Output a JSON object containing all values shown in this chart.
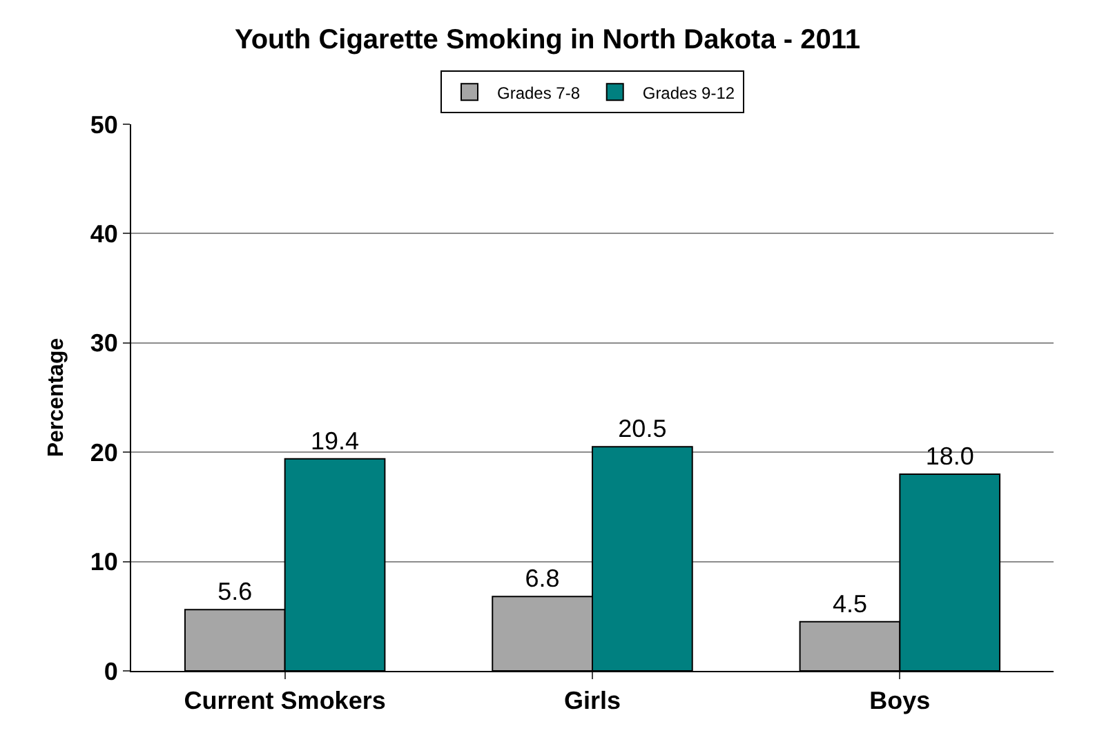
{
  "chart_data": {
    "type": "bar",
    "title": "Youth Cigarette Smoking in North Dakota - 2011",
    "ylabel": "Percentage",
    "categories": [
      "Current Smokers",
      "Girls",
      "Boys"
    ],
    "series": [
      {
        "name": "Grades 7-8",
        "color": "#a6a6a6",
        "values": [
          5.6,
          6.8,
          4.5
        ],
        "value_labels": [
          "5.6",
          "6.8",
          "4.5"
        ]
      },
      {
        "name": "Grades 9-12",
        "color": "#008080",
        "values": [
          19.4,
          20.5,
          18.0
        ],
        "value_labels": [
          "19.4",
          "20.5",
          "18.0"
        ]
      }
    ],
    "ylim": [
      0,
      50
    ],
    "yticks": [
      0,
      10,
      20,
      30,
      40,
      50
    ],
    "grid": "y",
    "legend": "top"
  }
}
